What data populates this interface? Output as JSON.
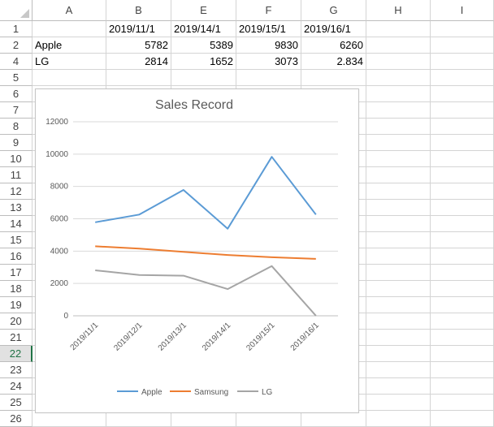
{
  "columns": [
    "A",
    "B",
    "E",
    "F",
    "G",
    "H",
    "I"
  ],
  "rows": [
    "1",
    "2",
    "4",
    "5",
    "6",
    "7",
    "8",
    "9",
    "10",
    "11",
    "12",
    "13",
    "14",
    "15",
    "16",
    "17",
    "18",
    "19",
    "20",
    "21",
    "22",
    "23",
    "24",
    "25",
    "26"
  ],
  "selected_row": "22",
  "cells": {
    "header_row": [
      "",
      "2019/11/1",
      "2019/14/1",
      "2019/15/1",
      "2019/16/1",
      "",
      ""
    ],
    "apple_row": [
      "Apple",
      "5782",
      "5389",
      "9830",
      "6260",
      "",
      ""
    ],
    "lg_row": [
      "LG",
      "2814",
      "1652",
      "3073",
      "2.834",
      "",
      ""
    ]
  },
  "chart_data": {
    "type": "line",
    "title": "Sales Record",
    "xlabel": "",
    "ylabel": "",
    "categories": [
      "2019/11/1",
      "2019/12/1",
      "2019/13/1",
      "2019/14/1",
      "2019/15/1",
      "2019/16/1"
    ],
    "ylim": [
      0,
      12000
    ],
    "yticks": [
      "0",
      "2000",
      "4000",
      "6000",
      "8000",
      "10000",
      "12000"
    ],
    "grid": true,
    "legend": "bottom",
    "series": [
      {
        "name": "Apple",
        "color": "#5b9bd5",
        "values": [
          5782,
          6260,
          7780,
          5389,
          9830,
          6260
        ]
      },
      {
        "name": "Samsung",
        "color": "#ed7d31",
        "values": [
          4300,
          4150,
          3950,
          3760,
          3620,
          3520
        ]
      },
      {
        "name": "LG",
        "color": "#a5a5a5",
        "values": [
          2814,
          2520,
          2480,
          1652,
          3073,
          2.834
        ]
      }
    ]
  }
}
